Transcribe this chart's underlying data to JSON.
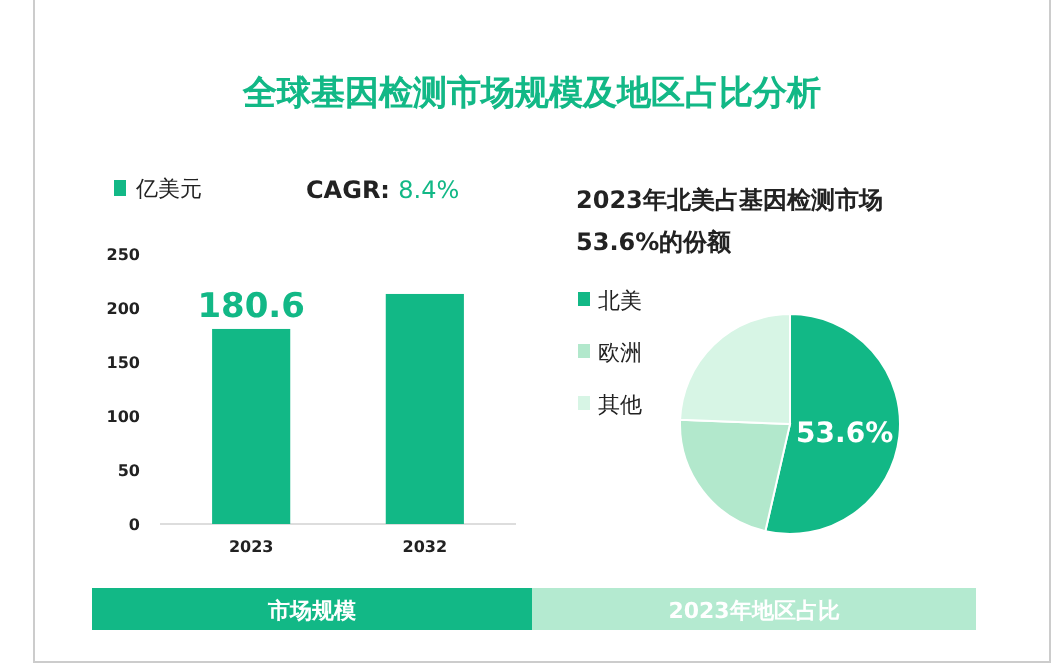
{
  "chart_data": [
    {
      "type": "bar",
      "title": "全球基因检测市场规模及地区占比分析",
      "categories": [
        "2023",
        "2032"
      ],
      "series": [
        {
          "name": "亿美元",
          "color": "#12b886",
          "values": [
            180.6,
            213
          ],
          "value_labels": [
            "180.6",
            null
          ]
        }
      ],
      "ylim": [
        0,
        250
      ],
      "yticks": [
        0,
        50,
        100,
        150,
        200,
        250
      ],
      "grid": false,
      "legend": "top left",
      "annotations": [
        "CAGR: 8.4%",
        "市场规模"
      ]
    },
    {
      "type": "pie",
      "title": "2023年北美占基因检测市场53.6%的份额",
      "categories": [
        "北美",
        "欧洲",
        "其他"
      ],
      "values": [
        53.6,
        22,
        24.4
      ],
      "colors": [
        "#12b886",
        "#b2e8cc",
        "#d7f5e5"
      ],
      "value_labels": [
        "53.6%",
        null,
        null
      ],
      "legend": "top left",
      "annotations": [
        "2023年地区占比"
      ]
    }
  ]
}
